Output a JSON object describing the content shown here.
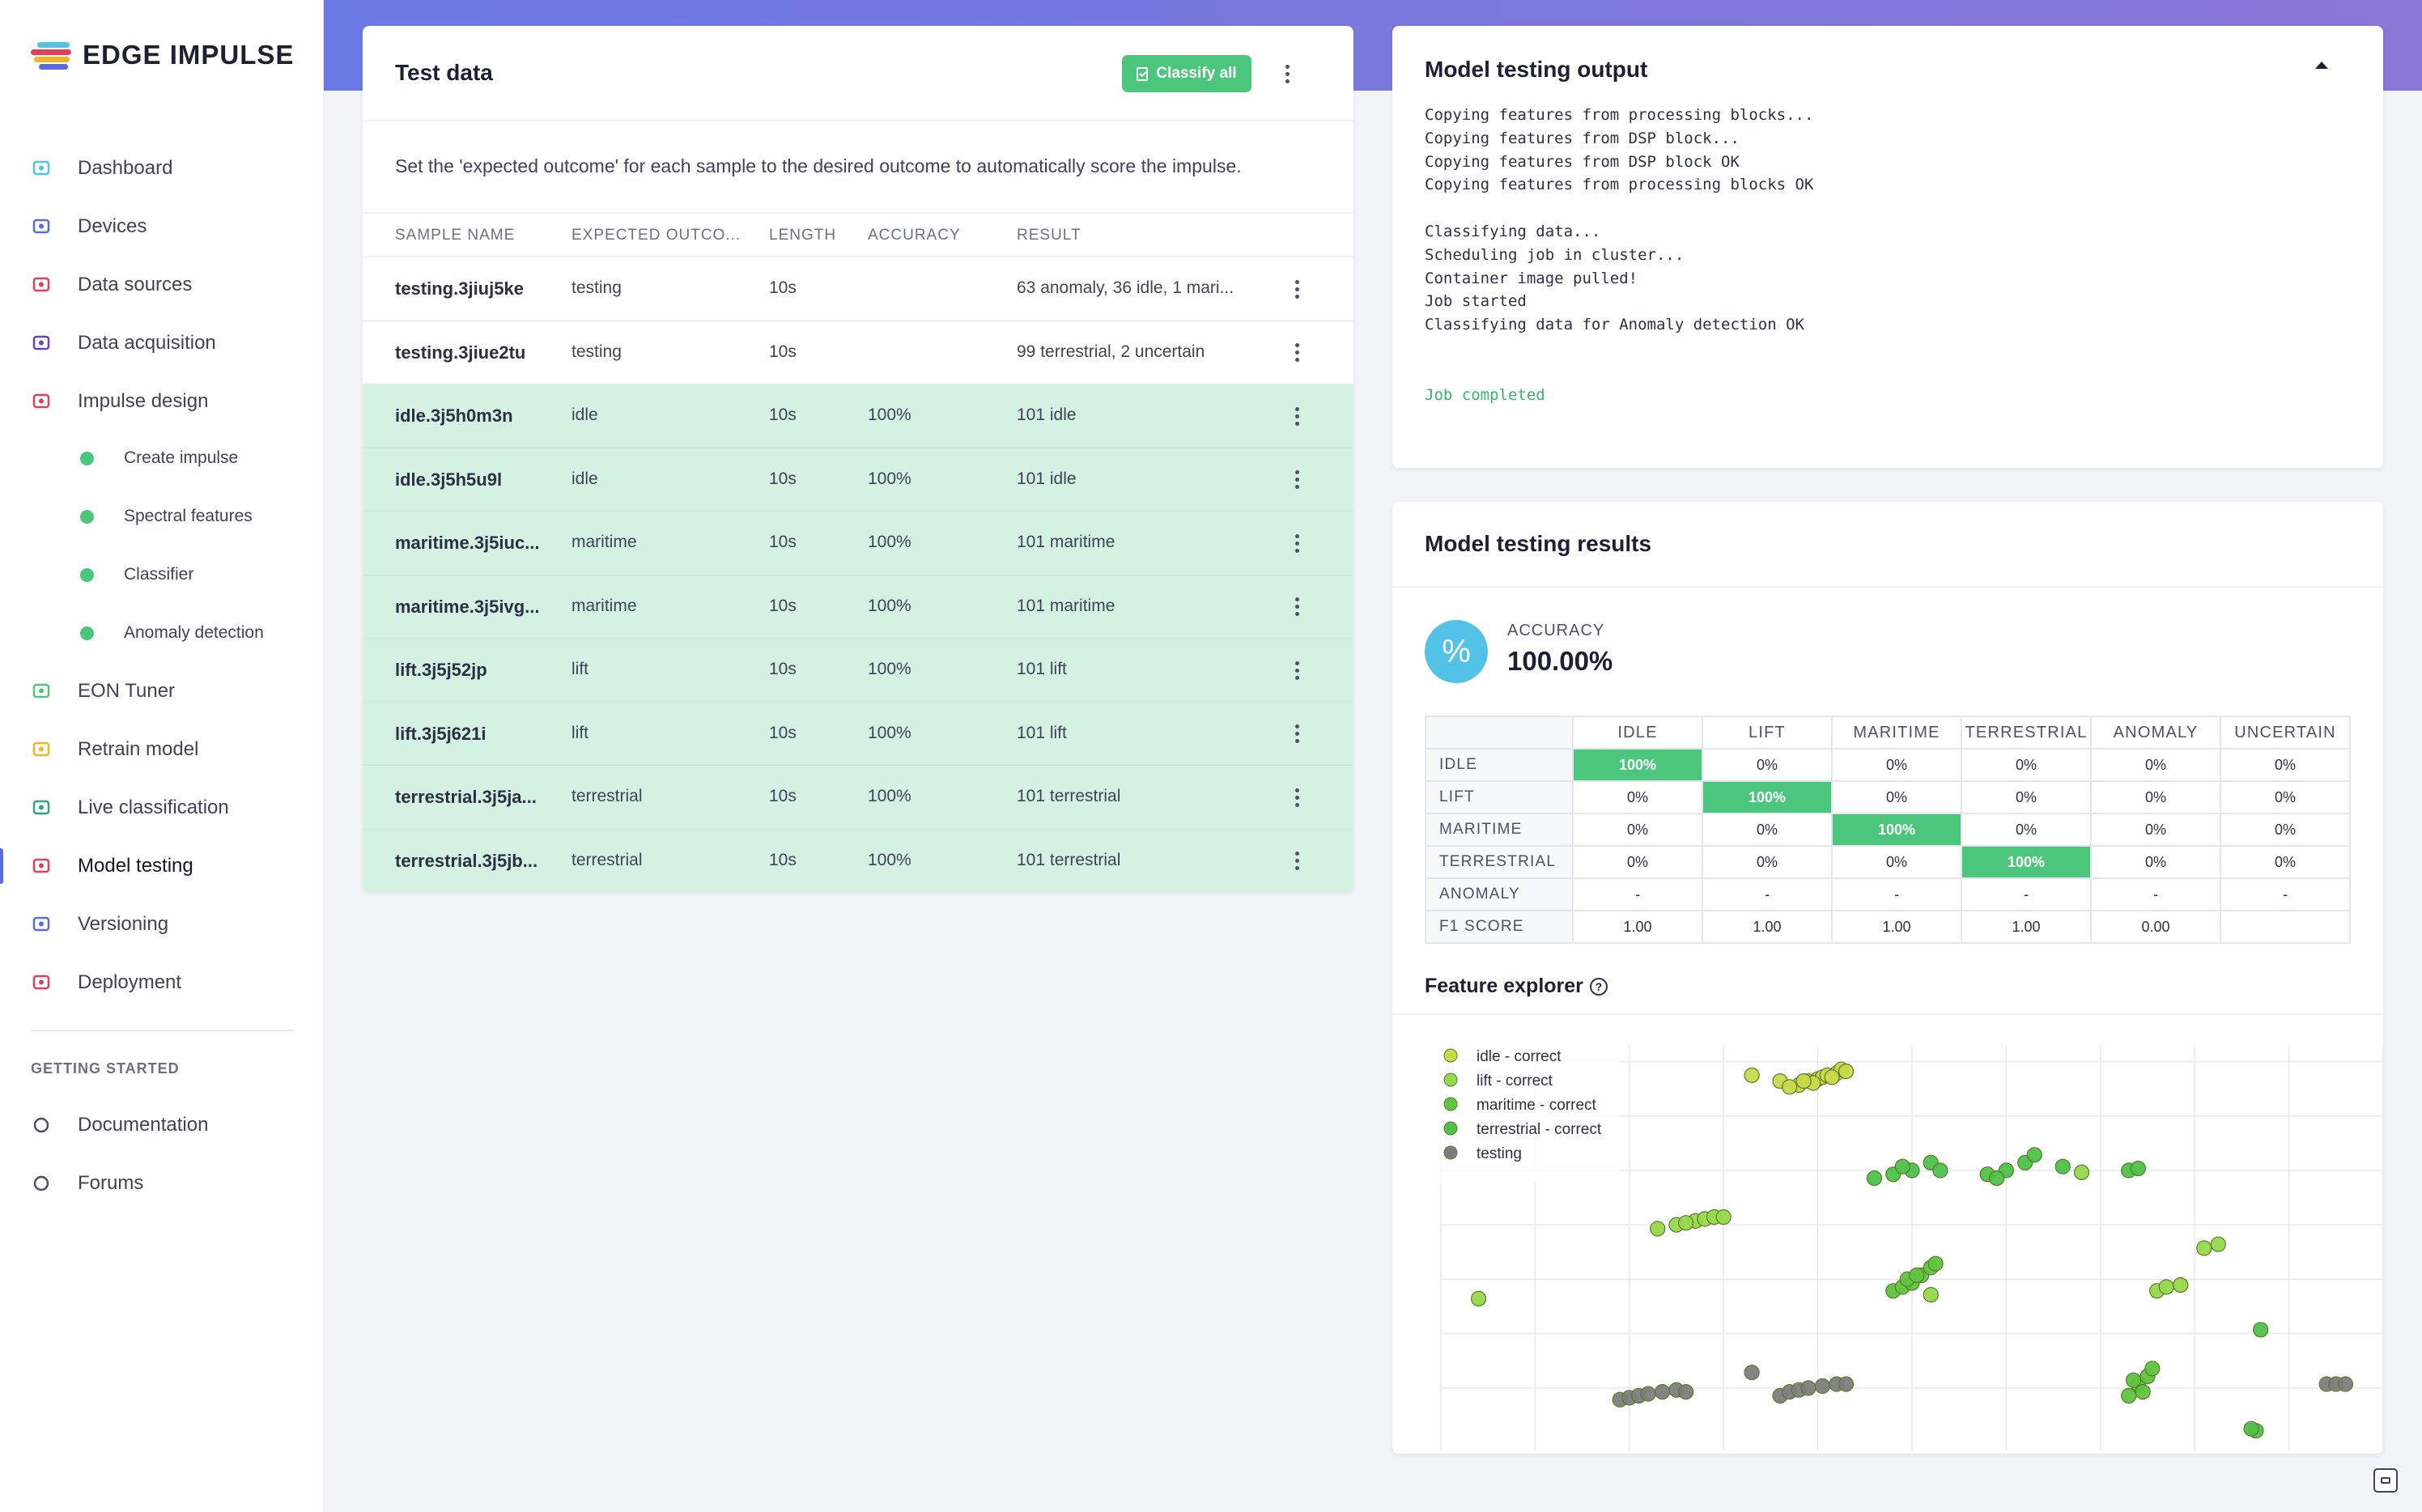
{
  "brand": {
    "name": "EDGE IMPULSE"
  },
  "sidebar": {
    "items": [
      {
        "label": "Dashboard",
        "icon": "monitor-icon",
        "color": "#52c3e6"
      },
      {
        "label": "Devices",
        "icon": "chip-icon",
        "color": "#5b6bdb"
      },
      {
        "label": "Data sources",
        "icon": "wand-icon",
        "color": "#e0405b"
      },
      {
        "label": "Data acquisition",
        "icon": "database-icon",
        "color": "#6b3fc7"
      },
      {
        "label": "Impulse design",
        "icon": "pulse-icon",
        "color": "#e0405b"
      },
      {
        "label": "Create impulse",
        "icon": "dot-icon",
        "sub": true
      },
      {
        "label": "Spectral features",
        "icon": "dot-icon",
        "sub": true
      },
      {
        "label": "Classifier",
        "icon": "dot-icon",
        "sub": true
      },
      {
        "label": "Anomaly detection",
        "icon": "dot-icon",
        "sub": true
      },
      {
        "label": "EON Tuner",
        "icon": "compass-icon",
        "color": "#4cc67d"
      },
      {
        "label": "Retrain model",
        "icon": "shuffle-icon",
        "color": "#f0b429"
      },
      {
        "label": "Live classification",
        "icon": "radar-icon",
        "color": "#2fa37a"
      },
      {
        "label": "Model testing",
        "icon": "clipboard-check-icon",
        "color": "#e0405b",
        "active": true
      },
      {
        "label": "Versioning",
        "icon": "branch-icon",
        "color": "#5b6bdb"
      },
      {
        "label": "Deployment",
        "icon": "box-icon",
        "color": "#e0405b"
      }
    ],
    "section_label": "GETTING STARTED",
    "help_items": [
      {
        "label": "Documentation",
        "icon": "rocket-icon",
        "color": "#4d5066"
      },
      {
        "label": "Forums",
        "icon": "chat-bubbles-icon",
        "color": "#4d5066"
      }
    ]
  },
  "test_data": {
    "title": "Test data",
    "classify_label": "Classify all",
    "description": "Set the 'expected outcome' for each sample to the desired outcome to automatically score the impulse.",
    "columns": [
      "SAMPLE NAME",
      "EXPECTED OUTCO...",
      "LENGTH",
      "ACCURACY",
      "RESULT"
    ],
    "rows": [
      {
        "name": "testing.3jiuj5ke",
        "expected": "testing",
        "length": "10s",
        "accuracy": "",
        "result": "63 anomaly, 36 idle, 1 mari...",
        "highlight": false
      },
      {
        "name": "testing.3jiue2tu",
        "expected": "testing",
        "length": "10s",
        "accuracy": "",
        "result": "99 terrestrial, 2 uncertain",
        "highlight": false
      },
      {
        "name": "idle.3j5h0m3n",
        "expected": "idle",
        "length": "10s",
        "accuracy": "100%",
        "result": "101 idle",
        "highlight": true
      },
      {
        "name": "idle.3j5h5u9l",
        "expected": "idle",
        "length": "10s",
        "accuracy": "100%",
        "result": "101 idle",
        "highlight": true
      },
      {
        "name": "maritime.3j5iuc...",
        "expected": "maritime",
        "length": "10s",
        "accuracy": "100%",
        "result": "101 maritime",
        "highlight": true
      },
      {
        "name": "maritime.3j5ivg...",
        "expected": "maritime",
        "length": "10s",
        "accuracy": "100%",
        "result": "101 maritime",
        "highlight": true
      },
      {
        "name": "lift.3j5j52jp",
        "expected": "lift",
        "length": "10s",
        "accuracy": "100%",
        "result": "101 lift",
        "highlight": true
      },
      {
        "name": "lift.3j5j621i",
        "expected": "lift",
        "length": "10s",
        "accuracy": "100%",
        "result": "101 lift",
        "highlight": true
      },
      {
        "name": "terrestrial.3j5ja...",
        "expected": "terrestrial",
        "length": "10s",
        "accuracy": "100%",
        "result": "101 terrestrial",
        "highlight": true
      },
      {
        "name": "terrestrial.3j5jb...",
        "expected": "terrestrial",
        "length": "10s",
        "accuracy": "100%",
        "result": "101 terrestrial",
        "highlight": true
      }
    ]
  },
  "output": {
    "title": "Model testing output",
    "lines": [
      "Copying features from processing blocks...",
      "Copying features from DSP block...",
      "Copying features from DSP block OK",
      "Copying features from processing blocks OK",
      "",
      "Classifying data...",
      "Scheduling job in cluster...",
      "Container image pulled!",
      "Job started",
      "Classifying data for Anomaly detection OK",
      "",
      "",
      "Job completed"
    ]
  },
  "results": {
    "title": "Model testing results",
    "badge_symbol": "%",
    "accuracy_label": "ACCURACY",
    "accuracy_value": "100.00%",
    "matrix": {
      "columns": [
        "IDLE",
        "LIFT",
        "MARITIME",
        "TERRESTRIAL",
        "ANOMALY",
        "UNCERTAIN"
      ],
      "rows": [
        {
          "label": "IDLE",
          "cells": [
            "100%",
            "0%",
            "0%",
            "0%",
            "0%",
            "0%"
          ],
          "diag": 0
        },
        {
          "label": "LIFT",
          "cells": [
            "0%",
            "100%",
            "0%",
            "0%",
            "0%",
            "0%"
          ],
          "diag": 1
        },
        {
          "label": "MARITIME",
          "cells": [
            "0%",
            "0%",
            "100%",
            "0%",
            "0%",
            "0%"
          ],
          "diag": 2
        },
        {
          "label": "TERRESTRIAL",
          "cells": [
            "0%",
            "0%",
            "0%",
            "100%",
            "0%",
            "0%"
          ],
          "diag": 3
        },
        {
          "label": "ANOMALY",
          "cells": [
            "-",
            "-",
            "-",
            "-",
            "-",
            "-"
          ],
          "diag": -1
        },
        {
          "label": "F1 SCORE",
          "cells": [
            "1.00",
            "1.00",
            "1.00",
            "1.00",
            "0.00",
            ""
          ],
          "diag": -1
        }
      ],
      "highlight_color": "#4cc67d"
    },
    "feature_explorer": {
      "title": "Feature explorer",
      "help_symbol": "?"
    }
  },
  "chart_data": {
    "type": "scatter",
    "title": "",
    "xlabel": "",
    "ylabel": "",
    "xlim": [
      0,
      10
    ],
    "ylim": [
      0,
      10
    ],
    "grid": true,
    "legend_position": "top-left",
    "series": [
      {
        "name": "idle - correct",
        "color": "#c8d94a",
        "points": [
          [
            3.6,
            9.3
          ],
          [
            3.8,
            9.2
          ],
          [
            3.9,
            9.3
          ],
          [
            4.0,
            9.35
          ],
          [
            4.05,
            9.4
          ],
          [
            4.1,
            9.45
          ],
          [
            4.2,
            9.5
          ],
          [
            4.25,
            9.6
          ],
          [
            3.7,
            9.15
          ],
          [
            3.95,
            9.25
          ],
          [
            4.15,
            9.4
          ],
          [
            3.85,
            9.3
          ],
          [
            4.3,
            9.55
          ],
          [
            3.3,
            9.45
          ]
        ]
      },
      {
        "name": "lift - correct",
        "color": "#96d94a",
        "points": [
          [
            2.3,
            5.5
          ],
          [
            2.5,
            5.6
          ],
          [
            2.7,
            5.7
          ],
          [
            2.8,
            5.75
          ],
          [
            2.9,
            5.8
          ],
          [
            3.0,
            5.8
          ],
          [
            2.6,
            5.65
          ],
          [
            0.4,
            3.7
          ],
          [
            8.1,
            5.0
          ],
          [
            8.25,
            5.1
          ],
          [
            7.6,
            3.9
          ],
          [
            7.7,
            4.0
          ],
          [
            7.85,
            4.05
          ],
          [
            6.8,
            6.95
          ],
          [
            5.2,
            3.8
          ]
        ]
      },
      {
        "name": "maritime - correct",
        "color": "#5fc43f",
        "points": [
          [
            4.8,
            3.9
          ],
          [
            4.9,
            4.0
          ],
          [
            5.0,
            4.1
          ],
          [
            5.1,
            4.3
          ],
          [
            5.2,
            4.5
          ],
          [
            5.25,
            4.6
          ],
          [
            4.95,
            4.2
          ],
          [
            5.05,
            4.3
          ],
          [
            7.3,
            1.2
          ],
          [
            7.4,
            1.5
          ],
          [
            7.5,
            1.7
          ],
          [
            7.55,
            1.9
          ],
          [
            7.45,
            1.3
          ],
          [
            7.35,
            1.6
          ]
        ]
      },
      {
        "name": "terrestrial - correct",
        "color": "#4ec24a",
        "points": [
          [
            4.6,
            6.8
          ],
          [
            4.8,
            6.9
          ],
          [
            5.0,
            7.0
          ],
          [
            5.2,
            7.2
          ],
          [
            5.3,
            7.0
          ],
          [
            4.9,
            7.1
          ],
          [
            5.8,
            6.9
          ],
          [
            6.0,
            7.0
          ],
          [
            6.2,
            7.2
          ],
          [
            6.3,
            7.4
          ],
          [
            5.9,
            6.8
          ],
          [
            6.6,
            7.1
          ],
          [
            7.3,
            7.0
          ],
          [
            7.4,
            7.05
          ],
          [
            8.7,
            2.9
          ],
          [
            8.65,
            0.3
          ],
          [
            8.6,
            0.35
          ]
        ]
      },
      {
        "name": "testing",
        "color": "#7d7d7d",
        "points": [
          [
            1.9,
            1.1
          ],
          [
            2.0,
            1.15
          ],
          [
            2.1,
            1.2
          ],
          [
            2.2,
            1.25
          ],
          [
            2.35,
            1.3
          ],
          [
            2.5,
            1.35
          ],
          [
            2.6,
            1.3
          ],
          [
            3.6,
            1.2
          ],
          [
            3.7,
            1.3
          ],
          [
            3.8,
            1.35
          ],
          [
            3.9,
            1.4
          ],
          [
            4.05,
            1.45
          ],
          [
            4.2,
            1.5
          ],
          [
            4.3,
            1.5
          ],
          [
            3.3,
            1.8
          ],
          [
            9.4,
            1.5
          ],
          [
            9.5,
            1.5
          ],
          [
            9.6,
            1.5
          ]
        ]
      }
    ]
  }
}
